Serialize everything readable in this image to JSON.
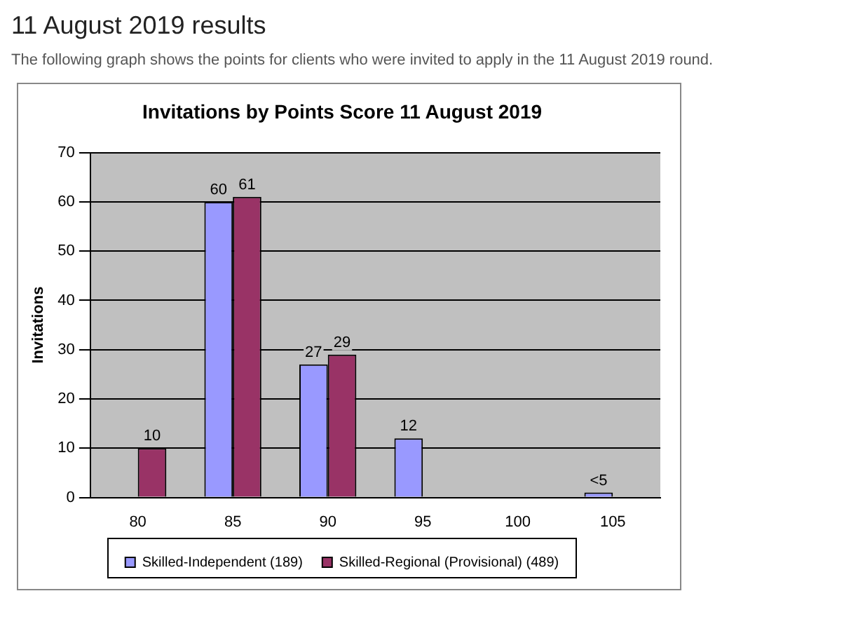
{
  "chart_data": {
    "type": "bar",
    "title": "Invitations by Points Score 11 August 2019",
    "annotations": [
      "11 August 2019 results",
      "The following graph shows the points for clients who were invited to apply in the 11 August 2019 round."
    ],
    "ylabel": "Invitations",
    "categories": [
      "80",
      "85",
      "90",
      "95",
      "100",
      "105"
    ],
    "series": [
      {
        "name": "Skilled-Independent (189)",
        "color": "#9999ff",
        "values": [
          null,
          60,
          27,
          12,
          null,
          1
        ],
        "value_labels": [
          null,
          "60",
          "27",
          "12",
          null,
          "<5"
        ]
      },
      {
        "name": "Skilled-Regional (Provisional) (489)",
        "color": "#993366",
        "values": [
          10,
          61,
          29,
          null,
          null,
          null
        ],
        "value_labels": [
          "10",
          "61",
          "29",
          null,
          null,
          null
        ]
      }
    ],
    "ylim": [
      0,
      70
    ],
    "yticks": [
      0,
      10,
      20,
      30,
      40,
      50,
      60,
      70
    ],
    "grid": "y",
    "legend": "bottom"
  }
}
